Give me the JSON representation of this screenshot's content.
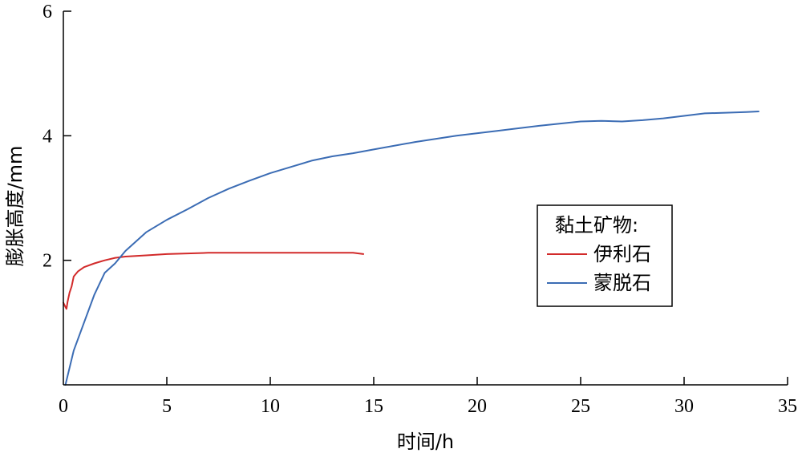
{
  "chart_data": {
    "type": "line",
    "title": "",
    "xlabel": "时间/h",
    "ylabel": "膨胀高度/mm",
    "xlim": [
      0,
      35
    ],
    "ylim": [
      0,
      6
    ],
    "x_ticks": [
      0,
      5,
      10,
      15,
      20,
      25,
      30,
      35
    ],
    "y_ticks": [
      2,
      4,
      6
    ],
    "grid": false,
    "legend": {
      "title": "黏土矿物:",
      "placement": "right-center"
    },
    "series": [
      {
        "name": "伊利石",
        "color": "#d22a2a",
        "x": [
          0.0,
          0.1,
          0.15,
          0.2,
          0.3,
          0.4,
          0.5,
          0.7,
          1.0,
          1.5,
          2.0,
          2.5,
          3.0,
          4.0,
          5.0,
          6.0,
          7.0,
          8.0,
          9.0,
          10.0,
          11.0,
          12.0,
          13.0,
          14.0,
          14.5
        ],
        "y": [
          1.32,
          1.25,
          1.22,
          1.33,
          1.48,
          1.58,
          1.74,
          1.82,
          1.89,
          1.95,
          2.0,
          2.04,
          2.06,
          2.08,
          2.1,
          2.11,
          2.12,
          2.12,
          2.12,
          2.12,
          2.12,
          2.12,
          2.12,
          2.12,
          2.1
        ]
      },
      {
        "name": "蒙脱石",
        "color": "#3b6cb4",
        "x": [
          0.1,
          0.5,
          1.0,
          1.5,
          2.0,
          2.5,
          3.0,
          4.0,
          5.0,
          6.0,
          7.0,
          8.0,
          9.0,
          10.0,
          11.0,
          12.0,
          13.0,
          14.0,
          15.0,
          17.0,
          19.0,
          21.0,
          23.0,
          25.0,
          26.0,
          27.0,
          28.0,
          29.0,
          30.0,
          31.0,
          32.0,
          33.0,
          33.6
        ],
        "y": [
          0.0,
          0.55,
          1.0,
          1.45,
          1.8,
          1.95,
          2.15,
          2.45,
          2.65,
          2.82,
          3.0,
          3.15,
          3.28,
          3.4,
          3.5,
          3.6,
          3.67,
          3.72,
          3.78,
          3.9,
          4.0,
          4.08,
          4.16,
          4.23,
          4.24,
          4.23,
          4.25,
          4.28,
          4.32,
          4.36,
          4.37,
          4.38,
          4.39
        ]
      }
    ]
  }
}
